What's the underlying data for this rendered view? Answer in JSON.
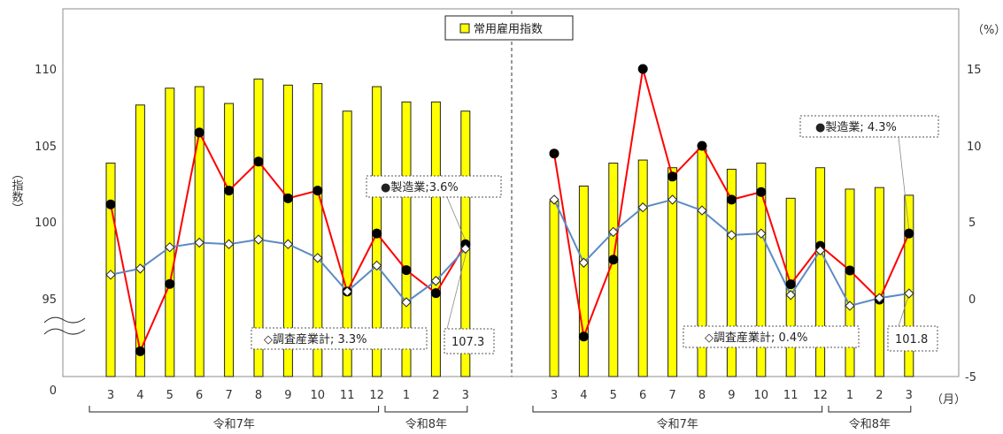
{
  "legend": {
    "bar_label": "常用雇用指数"
  },
  "colors": {
    "bar": "#ffff00",
    "bar_stroke": "#222222",
    "manufacturing": "#ff0000",
    "all_industries": "#5b8bc4",
    "marker": "#000000"
  },
  "chart_data": [
    {
      "type": "bar+line",
      "panel": "left",
      "categories": [
        "3",
        "4",
        "5",
        "6",
        "7",
        "8",
        "9",
        "10",
        "11",
        "12",
        "1",
        "2",
        "3"
      ],
      "year_groups": [
        {
          "label": "令和7年",
          "from": 0,
          "to": 9
        },
        {
          "label": "令和8年",
          "from": 10,
          "to": 12
        }
      ],
      "month_unit": "",
      "y_left": {
        "label": "（指数）",
        "ticks": [
          "0",
          "95",
          "100",
          "105",
          "110"
        ],
        "range": [
          92,
          113
        ],
        "axis_break": true
      },
      "y_right": {
        "label": "",
        "ticks": []
      },
      "series": [
        {
          "name": "常用雇用指数",
          "kind": "bar",
          "axis": "left",
          "values": [
            103.9,
            107.7,
            108.8,
            108.9,
            107.8,
            109.4,
            109.0,
            109.1,
            107.3,
            108.9,
            107.9,
            107.9,
            107.3
          ]
        },
        {
          "name": "製造業",
          "kind": "line",
          "axis": "left",
          "marker": "filled-circle",
          "values": [
            101.2,
            91.6,
            96.0,
            105.9,
            102.1,
            104.0,
            101.6,
            102.1,
            95.5,
            99.3,
            96.9,
            95.4,
            98.6
          ]
        },
        {
          "name": "調査産業計",
          "kind": "line",
          "axis": "left",
          "marker": "open-diamond",
          "values": [
            96.6,
            97.0,
            98.4,
            98.7,
            98.6,
            98.9,
            98.6,
            97.7,
            95.5,
            97.2,
            94.8,
            96.2,
            98.3
          ]
        }
      ],
      "annotations": {
        "manufacturing": "●製造業;3.6%",
        "all_industries": "◇調査産業計; 3.3%",
        "bar_latest": "107.3"
      }
    },
    {
      "type": "bar+line",
      "panel": "right",
      "categories": [
        "3",
        "4",
        "5",
        "6",
        "7",
        "8",
        "9",
        "10",
        "11",
        "12",
        "1",
        "2",
        "3"
      ],
      "year_groups": [
        {
          "label": "令和7年",
          "from": 0,
          "to": 9
        },
        {
          "label": "令和8年",
          "from": 10,
          "to": 12
        }
      ],
      "month_unit": "（月）",
      "y_left": {
        "label": "",
        "ticks": []
      },
      "y_right": {
        "label": "（%）",
        "ticks": [
          "-5",
          "0",
          "5",
          "10",
          "15"
        ],
        "range": [
          -5,
          18
        ]
      },
      "series": [
        {
          "name": "常用雇用指数",
          "kind": "bar",
          "axis": "left",
          "values": [
            101.4,
            102.4,
            103.9,
            104.1,
            103.6,
            104.8,
            103.5,
            103.9,
            101.6,
            103.6,
            102.2,
            102.3,
            101.8
          ]
        },
        {
          "name": "製造業",
          "kind": "line",
          "axis": "right",
          "marker": "filled-circle",
          "values": [
            9.5,
            -2.4,
            2.6,
            15.0,
            8.0,
            10.0,
            6.5,
            7.0,
            1.0,
            3.5,
            1.9,
            0.0,
            4.3
          ]
        },
        {
          "name": "調査産業計",
          "kind": "line",
          "axis": "right",
          "marker": "open-diamond",
          "values": [
            6.5,
            2.4,
            4.4,
            6.0,
            6.5,
            5.8,
            4.2,
            4.3,
            0.3,
            3.2,
            -0.4,
            0.1,
            0.4
          ]
        }
      ],
      "annotations": {
        "manufacturing": "●製造業; 4.3%",
        "all_industries": "◇調査産業計; 0.4%",
        "bar_latest": "101.8"
      }
    }
  ]
}
